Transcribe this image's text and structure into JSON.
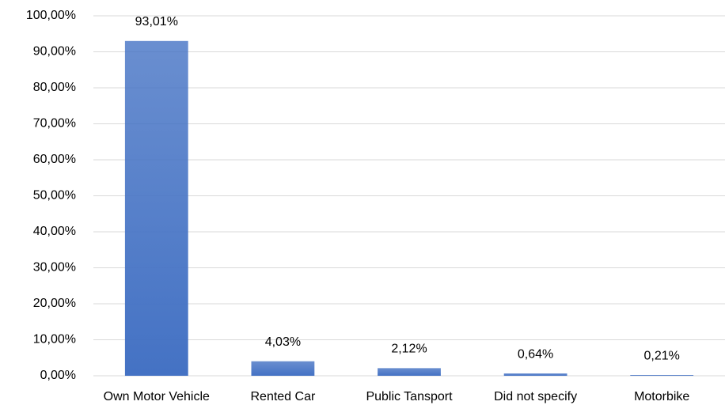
{
  "chart_data": {
    "type": "bar",
    "categories": [
      "Own Motor Vehicle",
      "Rented Car",
      "Public Tansport",
      "Did not specify",
      "Motorbike"
    ],
    "values": [
      93.01,
      4.03,
      2.12,
      0.64,
      0.21
    ],
    "value_labels": [
      "93,01%",
      "4,03%",
      "2,12%",
      "0,64%",
      "0,21%"
    ],
    "color": "#4472c4",
    "ylim": [
      0,
      100
    ],
    "yticks": [
      {
        "value": 0,
        "label": "0,00%"
      },
      {
        "value": 10,
        "label": "10,00%"
      },
      {
        "value": 20,
        "label": "20,00%"
      },
      {
        "value": 30,
        "label": "30,00%"
      },
      {
        "value": 40,
        "label": "40,00%"
      },
      {
        "value": 50,
        "label": "50,00%"
      },
      {
        "value": 60,
        "label": "60,00%"
      },
      {
        "value": 70,
        "label": "70,00%"
      },
      {
        "value": 80,
        "label": "80,00%"
      },
      {
        "value": 90,
        "label": "90,00%"
      },
      {
        "value": 100,
        "label": "100,00%"
      }
    ],
    "grid": true
  }
}
